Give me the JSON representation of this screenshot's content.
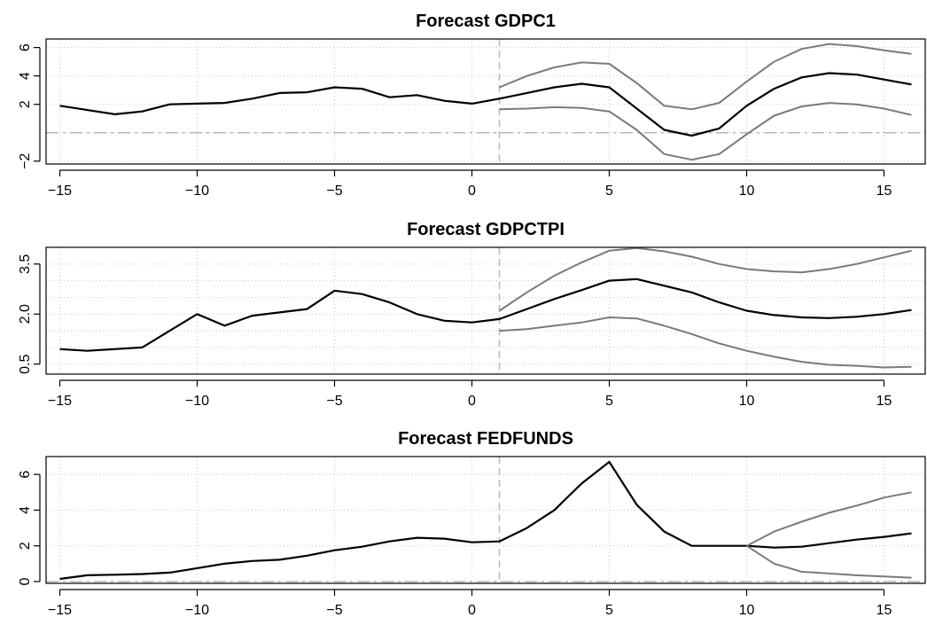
{
  "chart_data": [
    {
      "type": "line",
      "title": "Forecast GDPC1",
      "xlabel": "",
      "ylabel": "",
      "xlim": [
        -15.5,
        16.5
      ],
      "ylim": [
        -2.2,
        6.6
      ],
      "x_ticks": [
        -15,
        -10,
        -5,
        0,
        5,
        10,
        15
      ],
      "x_tick_labels": [
        "−15",
        "−10",
        "−5",
        "0",
        "5",
        "10",
        "15"
      ],
      "y_ticks": [
        -2,
        2,
        4,
        6
      ],
      "y_tick_labels": [
        "−2",
        "2",
        "4",
        "6"
      ],
      "y_grid": [
        -2,
        0,
        2,
        4,
        6
      ],
      "grid": true,
      "vline_x": 1,
      "hline_y": 0,
      "series": [
        {
          "role": "point",
          "x": [
            -15,
            -14,
            -13,
            -12,
            -11,
            -10,
            -9,
            -8,
            -7,
            -6,
            -5,
            -4,
            -3,
            -2,
            -1,
            0,
            1,
            2,
            3,
            4,
            5,
            6,
            7,
            8,
            9,
            10,
            11,
            12,
            13,
            14,
            15,
            16
          ],
          "values": [
            1.9,
            1.6,
            1.3,
            1.5,
            2.0,
            2.05,
            2.1,
            2.4,
            2.8,
            2.85,
            3.2,
            3.1,
            2.5,
            2.65,
            2.25,
            2.05,
            2.4,
            2.8,
            3.2,
            3.45,
            3.2,
            1.7,
            0.2,
            -0.2,
            0.3,
            1.9,
            3.1,
            3.9,
            4.2,
            4.1,
            3.75,
            3.4
          ]
        },
        {
          "role": "upper",
          "x": [
            1,
            2,
            3,
            4,
            5,
            6,
            7,
            8,
            9,
            10,
            11,
            12,
            13,
            14,
            15,
            16
          ],
          "values": [
            3.2,
            4.0,
            4.6,
            4.95,
            4.85,
            3.5,
            1.9,
            1.65,
            2.1,
            3.6,
            5.0,
            5.9,
            6.25,
            6.1,
            5.8,
            5.55
          ]
        },
        {
          "role": "lower",
          "x": [
            1,
            2,
            3,
            4,
            5,
            6,
            7,
            8,
            9,
            10,
            11,
            12,
            13,
            14,
            15,
            16
          ],
          "values": [
            1.65,
            1.7,
            1.8,
            1.75,
            1.5,
            0.2,
            -1.5,
            -1.9,
            -1.5,
            -0.1,
            1.2,
            1.85,
            2.1,
            2.0,
            1.7,
            1.25
          ]
        }
      ]
    },
    {
      "type": "line",
      "title": "Forecast GDPCTPI",
      "xlabel": "",
      "ylabel": "",
      "xlim": [
        -15.5,
        16.5
      ],
      "ylim": [
        0.2,
        4.0
      ],
      "x_ticks": [
        -15,
        -10,
        -5,
        0,
        5,
        10,
        15
      ],
      "x_tick_labels": [
        "−15",
        "−10",
        "−5",
        "0",
        "5",
        "10",
        "15"
      ],
      "y_ticks": [
        0.5,
        2.0,
        3.5
      ],
      "y_tick_labels": [
        "0.5",
        "2.0",
        "3.5"
      ],
      "y_grid": [
        0.5,
        1.0,
        1.5,
        2.0,
        2.5,
        3.0,
        3.5
      ],
      "grid": true,
      "vline_x": 1,
      "hline_y": null,
      "series": [
        {
          "role": "point",
          "x": [
            -15,
            -14,
            -13,
            -12,
            -11,
            -10,
            -9,
            -8,
            -7,
            -6,
            -5,
            -4,
            -3,
            -2,
            -1,
            0,
            1,
            2,
            3,
            4,
            5,
            6,
            7,
            8,
            9,
            10,
            11,
            12,
            13,
            14,
            15,
            16
          ],
          "values": [
            0.95,
            0.9,
            0.95,
            1.0,
            1.5,
            2.0,
            1.65,
            1.95,
            2.05,
            2.15,
            2.7,
            2.6,
            2.35,
            2.0,
            1.8,
            1.75,
            1.85,
            2.15,
            2.45,
            2.72,
            3.0,
            3.05,
            2.85,
            2.65,
            2.35,
            2.1,
            1.97,
            1.9,
            1.88,
            1.92,
            2.0,
            2.12
          ]
        },
        {
          "role": "upper",
          "x": [
            1,
            2,
            3,
            4,
            5,
            6,
            7,
            8,
            9,
            10,
            11,
            12,
            13,
            14,
            15,
            16
          ],
          "values": [
            2.1,
            2.65,
            3.15,
            3.55,
            3.9,
            3.98,
            3.88,
            3.72,
            3.5,
            3.35,
            3.28,
            3.25,
            3.35,
            3.5,
            3.7,
            3.9
          ]
        },
        {
          "role": "lower",
          "x": [
            1,
            2,
            3,
            4,
            5,
            6,
            7,
            8,
            9,
            10,
            11,
            12,
            13,
            14,
            15,
            16
          ],
          "values": [
            1.5,
            1.55,
            1.65,
            1.75,
            1.9,
            1.87,
            1.65,
            1.4,
            1.12,
            0.9,
            0.72,
            0.57,
            0.48,
            0.45,
            0.4,
            0.42
          ]
        }
      ]
    },
    {
      "type": "line",
      "title": "Forecast FEDFUNDS",
      "xlabel": "",
      "ylabel": "",
      "xlim": [
        -15.5,
        16.5
      ],
      "ylim": [
        -0.1,
        7.0
      ],
      "x_ticks": [
        -15,
        -10,
        -5,
        0,
        5,
        10,
        15
      ],
      "x_tick_labels": [
        "−15",
        "−10",
        "−5",
        "0",
        "5",
        "10",
        "15"
      ],
      "y_ticks": [
        0,
        2,
        4,
        6
      ],
      "y_tick_labels": [
        "0",
        "2",
        "4",
        "6"
      ],
      "y_grid": [
        0,
        2,
        4,
        6
      ],
      "grid": true,
      "vline_x": 1,
      "hline_y": 0,
      "series": [
        {
          "role": "point",
          "x": [
            -15,
            -14,
            -13,
            -12,
            -11,
            -10,
            -9,
            -8,
            -7,
            -6,
            -5,
            -4,
            -3,
            -2,
            -1,
            0,
            1,
            2,
            3,
            4,
            5,
            6,
            7,
            8,
            9,
            10,
            11,
            12,
            13,
            14,
            15,
            16
          ],
          "values": [
            0.15,
            0.35,
            0.38,
            0.42,
            0.5,
            0.75,
            1.0,
            1.15,
            1.22,
            1.45,
            1.75,
            1.95,
            2.25,
            2.45,
            2.4,
            2.2,
            2.25,
            3.0,
            4.0,
            5.5,
            6.7,
            4.3,
            2.8,
            2.0,
            2.0,
            2.0,
            1.9,
            1.95,
            2.15,
            2.35,
            2.5,
            2.7
          ]
        },
        {
          "role": "upper",
          "x": [
            10,
            11,
            12,
            13,
            14,
            15,
            16
          ],
          "values": [
            2.0,
            2.8,
            3.35,
            3.85,
            4.25,
            4.7,
            5.0
          ]
        },
        {
          "role": "lower",
          "x": [
            10,
            11,
            12,
            13,
            14,
            15,
            16
          ],
          "values": [
            2.0,
            1.0,
            0.55,
            0.45,
            0.35,
            0.28,
            0.22
          ]
        }
      ]
    }
  ]
}
